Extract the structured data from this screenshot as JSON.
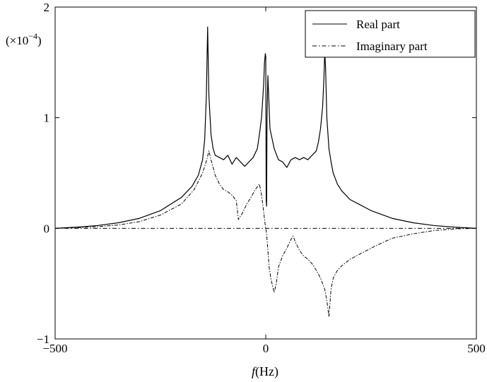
{
  "chart_data": {
    "type": "line",
    "title": "",
    "xlabel_var": "f",
    "xlabel_unit": "(Hz)",
    "ylabel": "",
    "y_multiplier_label": "(×10",
    "y_multiplier_exp": "−4",
    "y_multiplier_close": ")",
    "xlim": [
      -500,
      500
    ],
    "ylim": [
      -1,
      2
    ],
    "xticks": [
      {
        "value": -500,
        "label": "−500"
      },
      {
        "value": 0,
        "label": "0"
      },
      {
        "value": 500,
        "label": "500"
      }
    ],
    "yticks": [
      {
        "value": -1,
        "label": "−1"
      },
      {
        "value": 0,
        "label": "0"
      },
      {
        "value": 1,
        "label": "1"
      },
      {
        "value": 2,
        "label": "2"
      }
    ],
    "grid": false,
    "legend_position": "top-right",
    "series": [
      {
        "name": "Real part",
        "style": "solid",
        "color": "#000000",
        "x": [
          -500,
          -450,
          -400,
          -350,
          -300,
          -250,
          -200,
          -175,
          -160,
          -150,
          -145,
          -141,
          -138,
          -135,
          -130,
          -125,
          -120,
          -110,
          -100,
          -90,
          -80,
          -70,
          -60,
          -50,
          -40,
          -30,
          -20,
          -15,
          -10,
          -5,
          -3,
          -1,
          0,
          1,
          2,
          3,
          5,
          10,
          20,
          30,
          40,
          50,
          60,
          70,
          80,
          90,
          100,
          110,
          120,
          125,
          130,
          135,
          138,
          140,
          142,
          145,
          150,
          155,
          160,
          170,
          180,
          200,
          250,
          300,
          350,
          400,
          450,
          500
        ],
        "y": [
          0.0,
          0.01,
          0.025,
          0.05,
          0.09,
          0.16,
          0.28,
          0.38,
          0.48,
          0.62,
          0.8,
          1.2,
          1.82,
          1.2,
          0.85,
          0.72,
          0.66,
          0.64,
          0.62,
          0.66,
          0.58,
          0.64,
          0.6,
          0.56,
          0.6,
          0.64,
          0.72,
          0.85,
          1.0,
          1.3,
          1.5,
          1.58,
          1.55,
          0.25,
          0.2,
          1.0,
          1.38,
          0.9,
          0.72,
          0.62,
          0.6,
          0.55,
          0.62,
          0.64,
          0.62,
          0.64,
          0.62,
          0.66,
          0.7,
          0.78,
          0.9,
          1.1,
          1.35,
          1.6,
          1.45,
          1.0,
          0.72,
          0.6,
          0.5,
          0.4,
          0.34,
          0.26,
          0.16,
          0.09,
          0.05,
          0.025,
          0.01,
          0.0
        ]
      },
      {
        "name": "Imaginary part",
        "style": "dashdot",
        "color": "#000000",
        "x": [
          -500,
          -450,
          -400,
          -350,
          -300,
          -250,
          -200,
          -170,
          -150,
          -140,
          -135,
          -130,
          -120,
          -110,
          -100,
          -90,
          -80,
          -70,
          -65,
          -55,
          -45,
          -35,
          -25,
          -15,
          -10,
          -5,
          -2,
          0,
          2,
          5,
          8,
          12,
          16,
          20,
          25,
          30,
          40,
          50,
          60,
          65,
          70,
          80,
          90,
          100,
          110,
          120,
          130,
          140,
          145,
          150,
          155,
          160,
          170,
          180,
          200,
          230,
          260,
          300,
          350,
          400,
          450,
          500
        ],
        "y": [
          0.0,
          0.005,
          0.015,
          0.03,
          0.06,
          0.12,
          0.22,
          0.35,
          0.5,
          0.62,
          0.7,
          0.62,
          0.48,
          0.4,
          0.35,
          0.33,
          0.3,
          0.25,
          0.08,
          0.14,
          0.22,
          0.28,
          0.35,
          0.4,
          0.3,
          0.15,
          0.05,
          0.0,
          -0.05,
          -0.2,
          -0.35,
          -0.45,
          -0.52,
          -0.58,
          -0.5,
          -0.35,
          -0.25,
          -0.18,
          -0.1,
          -0.07,
          -0.12,
          -0.2,
          -0.25,
          -0.28,
          -0.32,
          -0.38,
          -0.45,
          -0.55,
          -0.65,
          -0.8,
          -0.55,
          -0.45,
          -0.38,
          -0.34,
          -0.28,
          -0.22,
          -0.16,
          -0.09,
          -0.05,
          -0.02,
          -0.005,
          0.0
        ]
      }
    ]
  }
}
